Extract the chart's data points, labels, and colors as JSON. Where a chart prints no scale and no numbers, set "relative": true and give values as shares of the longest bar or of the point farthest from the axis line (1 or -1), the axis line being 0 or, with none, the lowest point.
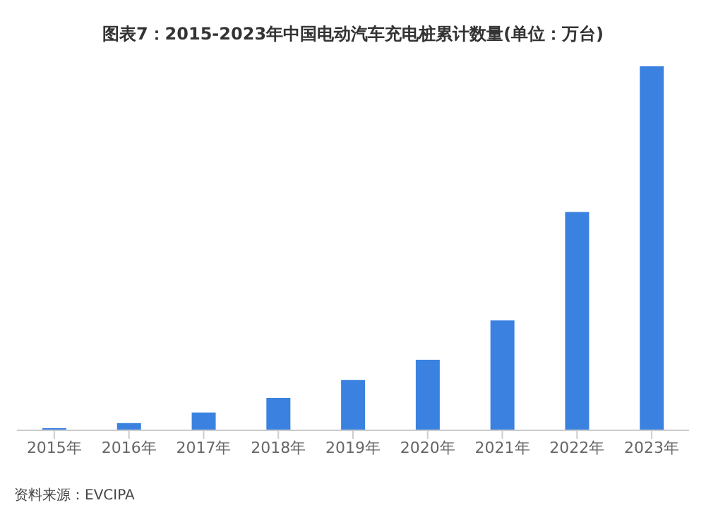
{
  "chart_data": {
    "type": "bar",
    "title": "图表7：2015-2023年中国电动汽车充电桩累计数量(单位：万台)",
    "categories": [
      "2015年",
      "2016年",
      "2017年",
      "2018年",
      "2019年",
      "2020年",
      "2021年",
      "2022年",
      "2023年"
    ],
    "relative": true,
    "color": "#3b82e0",
    "values": [
      0.006,
      0.02,
      0.049,
      0.089,
      0.138,
      0.194,
      0.302,
      0.6,
      1
    ],
    "annotations": [
      "资料来源：EVCIPA"
    ]
  }
}
